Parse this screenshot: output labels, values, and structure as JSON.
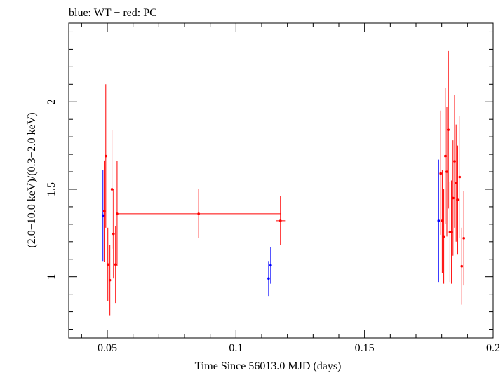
{
  "chart_data": {
    "type": "scatter",
    "title": "blue: WT − red: PC",
    "xlabel": "Time Since 56013.0 MJD (days)",
    "ylabel": "(2.0−10.0 keV)/(0.3−2.0 keV)",
    "xlim": [
      0.035,
      0.2
    ],
    "ylim": [
      0.65,
      2.45
    ],
    "xticks": [
      0.05,
      0.1,
      0.15,
      0.2
    ],
    "xtick_labels": [
      "0.05",
      "0.1",
      "0.15",
      "0.2"
    ],
    "yticks": [
      1,
      1.5,
      2
    ],
    "ytick_labels": [
      "1",
      "1.5",
      "2"
    ],
    "grid": false,
    "legend": "none",
    "series": [
      {
        "color": "#0000ff",
        "points": [
          {
            "x": 0.0483,
            "y": 1.35,
            "xerr": 0.0003,
            "ylo": 1.09,
            "yhi": 1.61
          },
          {
            "x": 0.1127,
            "y": 0.99,
            "xerr": 0.0003,
            "ylo": 0.89,
            "yhi": 1.09
          },
          {
            "x": 0.1135,
            "y": 1.065,
            "xerr": 0.0003,
            "ylo": 0.96,
            "yhi": 1.17
          },
          {
            "x": 0.1788,
            "y": 1.32,
            "xerr": 0.0003,
            "ylo": 0.97,
            "yhi": 1.67
          }
        ]
      },
      {
        "color": "#ff0000",
        "points": [
          {
            "x": 0.0488,
            "y": 1.375,
            "xerr": 0.0003,
            "ylo": 1.085,
            "yhi": 1.665
          },
          {
            "x": 0.0494,
            "y": 1.69,
            "xerr": 0.0003,
            "ylo": 1.28,
            "yhi": 2.1
          },
          {
            "x": 0.0502,
            "y": 1.07,
            "xerr": 0.0003,
            "ylo": 0.86,
            "yhi": 1.28
          },
          {
            "x": 0.051,
            "y": 0.98,
            "xerr": 0.0003,
            "ylo": 0.78,
            "yhi": 1.18
          },
          {
            "x": 0.0518,
            "y": 1.5,
            "xerr": 0.0003,
            "ylo": 1.16,
            "yhi": 1.84
          },
          {
            "x": 0.0524,
            "y": 1.245,
            "xerr": 0.0003,
            "ylo": 0.99,
            "yhi": 1.5
          },
          {
            "x": 0.0532,
            "y": 1.07,
            "xerr": 0.0003,
            "ylo": 0.85,
            "yhi": 1.29
          },
          {
            "x": 0.0538,
            "y": 1.36,
            "xerr": 0.0003,
            "ylo": 1.06,
            "yhi": 1.66
          },
          {
            "x": 0.0855,
            "y": 1.36,
            "xerr": 0.0318,
            "ylo": 1.22,
            "yhi": 1.5
          },
          {
            "x": 0.1173,
            "y": 1.32,
            "xerr": 0.0018,
            "ylo": 1.18,
            "yhi": 1.46
          },
          {
            "x": 0.1796,
            "y": 1.59,
            "xerr": 0.0003,
            "ylo": 1.24,
            "yhi": 1.95
          },
          {
            "x": 0.1802,
            "y": 1.32,
            "xerr": 0.0003,
            "ylo": 1.02,
            "yhi": 1.61
          },
          {
            "x": 0.1808,
            "y": 1.23,
            "xerr": 0.0003,
            "ylo": 0.96,
            "yhi": 1.5
          },
          {
            "x": 0.1814,
            "y": 1.69,
            "xerr": 0.0003,
            "ylo": 1.3,
            "yhi": 2.08
          },
          {
            "x": 0.182,
            "y": 1.6,
            "xerr": 0.0003,
            "ylo": 1.23,
            "yhi": 1.97
          },
          {
            "x": 0.1826,
            "y": 1.84,
            "xerr": 0.0003,
            "ylo": 1.39,
            "yhi": 2.29
          },
          {
            "x": 0.1832,
            "y": 1.255,
            "xerr": 0.0003,
            "ylo": 0.97,
            "yhi": 1.54
          },
          {
            "x": 0.1838,
            "y": 1.255,
            "xerr": 0.0003,
            "ylo": 0.96,
            "yhi": 1.55
          },
          {
            "x": 0.1844,
            "y": 1.45,
            "xerr": 0.0003,
            "ylo": 1.12,
            "yhi": 1.78
          },
          {
            "x": 0.185,
            "y": 1.66,
            "xerr": 0.0003,
            "ylo": 1.28,
            "yhi": 2.04
          },
          {
            "x": 0.1856,
            "y": 1.535,
            "xerr": 0.0003,
            "ylo": 1.2,
            "yhi": 1.87
          },
          {
            "x": 0.1862,
            "y": 1.44,
            "xerr": 0.0003,
            "ylo": 1.13,
            "yhi": 1.75
          },
          {
            "x": 0.187,
            "y": 1.57,
            "xerr": 0.0003,
            "ylo": 1.22,
            "yhi": 1.92
          },
          {
            "x": 0.1878,
            "y": 1.06,
            "xerr": 0.0003,
            "ylo": 0.84,
            "yhi": 1.28
          },
          {
            "x": 0.1886,
            "y": 1.22,
            "xerr": 0.0003,
            "ylo": 0.95,
            "yhi": 1.49
          }
        ]
      }
    ]
  }
}
